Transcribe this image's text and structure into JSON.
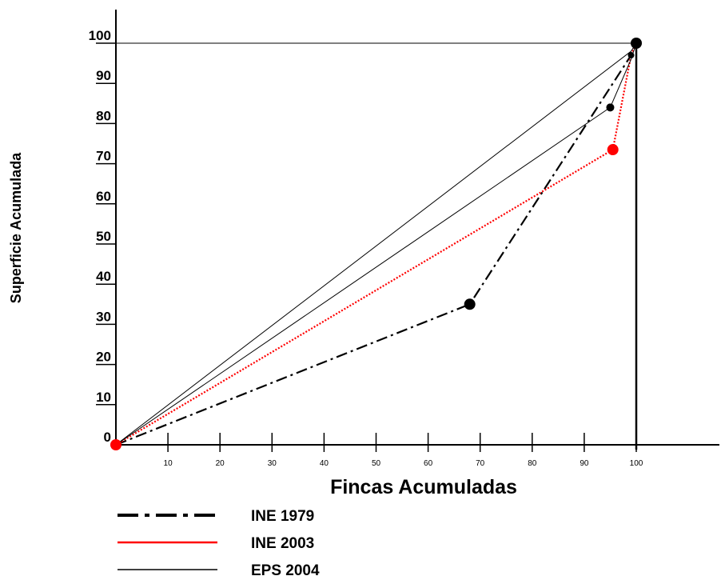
{
  "chart_data": {
    "type": "line",
    "title": "",
    "xlabel": "Fincas Acumuladas",
    "ylabel": "Superficie Acumulada",
    "xlim": [
      0,
      100
    ],
    "ylim": [
      0,
      100
    ],
    "x_ticks": [
      "10",
      "20",
      "30",
      "40",
      "50",
      "60",
      "70",
      "80",
      "90",
      "100"
    ],
    "y_ticks": [
      "0",
      "10",
      "20",
      "30",
      "40",
      "50",
      "60",
      "70",
      "80",
      "90",
      "100"
    ],
    "grid": false,
    "legend_position": "bottom-left",
    "series": [
      {
        "name": "INE 1979",
        "style": "dash-dot",
        "color": "#000000",
        "points": [
          [
            0,
            0
          ],
          [
            68,
            35
          ],
          [
            99,
            97
          ],
          [
            100,
            100
          ]
        ]
      },
      {
        "name": "INE 2003",
        "style": "dotted",
        "color": "#ff0000",
        "points": [
          [
            0,
            0
          ],
          [
            95.5,
            73.5
          ],
          [
            99,
            97
          ],
          [
            100,
            100
          ]
        ]
      },
      {
        "name": "EPS 2004",
        "style": "solid",
        "color": "#000000",
        "points": [
          [
            0,
            0
          ],
          [
            95,
            84
          ],
          [
            99,
            96
          ],
          [
            100,
            100
          ]
        ]
      },
      {
        "name": "",
        "style": "solid",
        "color": "#000000",
        "points": [
          [
            0,
            0
          ],
          [
            99,
            98
          ],
          [
            100,
            100
          ]
        ]
      }
    ],
    "reference_lines": {
      "horizontal_y": 100,
      "vertical_x": 100
    }
  }
}
